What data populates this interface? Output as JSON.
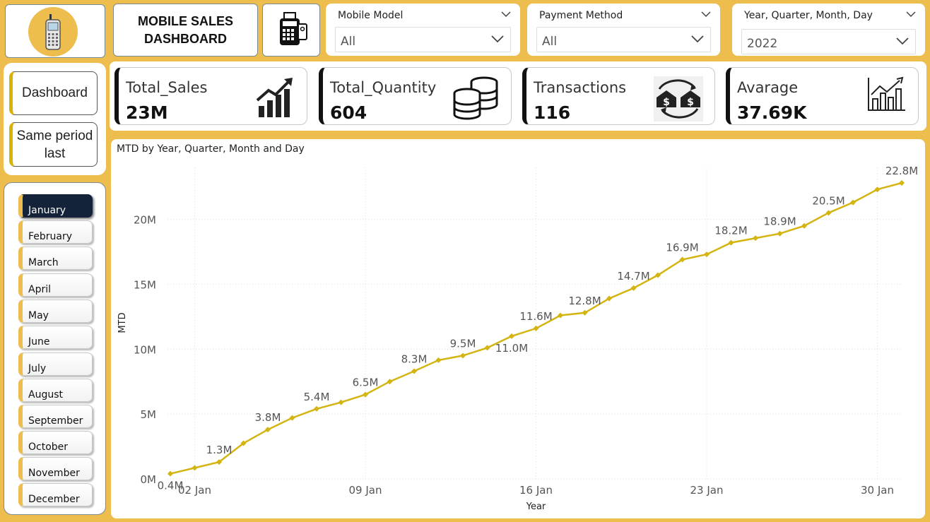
{
  "header": {
    "title_line1": "MOBILE SALES",
    "title_line2": "DASHBOARD",
    "more_options": "..."
  },
  "slicers": [
    {
      "title": "Mobile Model",
      "value": "All"
    },
    {
      "title": "Payment Method",
      "value": "All"
    },
    {
      "title": "Year, Quarter, Month, Day",
      "value": "2022"
    }
  ],
  "nav": {
    "dashboard": "Dashboard",
    "same_period_line1": "Same period",
    "same_period_line2": "last"
  },
  "months": [
    "January",
    "February",
    "March",
    "April",
    "May",
    "June",
    "July",
    "August",
    "September",
    "October",
    "November",
    "December"
  ],
  "active_month": "January",
  "kpis": [
    {
      "label": "Total_Sales",
      "value": "23M",
      "icon": "growth-chart-icon"
    },
    {
      "label": "Total_Quantity",
      "value": "604",
      "icon": "coins-stack-icon"
    },
    {
      "label": "Transactions",
      "value": "116",
      "icon": "money-transfer-icon"
    },
    {
      "label": "Avarage",
      "value": "37.69K",
      "icon": "bar-trend-icon"
    }
  ],
  "colors": {
    "background": "#edbd4e",
    "line": "#d4b410",
    "active_month": "#142339",
    "accent_bar": "#d9b300"
  },
  "chart_data": {
    "type": "line",
    "title": "MTD by Year, Quarter, Month and Day",
    "xlabel": "Year",
    "ylabel": "MTD",
    "x": [
      1,
      2,
      3,
      4,
      5,
      6,
      7,
      8,
      9,
      10,
      11,
      12,
      13,
      14,
      15,
      16,
      17,
      18,
      19,
      20,
      21,
      22,
      23,
      24,
      25,
      26,
      27,
      28,
      29,
      30,
      31
    ],
    "x_tick_labels": [
      {
        "x": 2,
        "label": "02 Jan"
      },
      {
        "x": 9,
        "label": "09 Jan"
      },
      {
        "x": 16,
        "label": "16 Jan"
      },
      {
        "x": 23,
        "label": "23 Jan"
      },
      {
        "x": 30,
        "label": "30 Jan"
      }
    ],
    "series": [
      {
        "name": "MTD",
        "values": [
          0.4,
          0.85,
          1.3,
          2.75,
          3.8,
          4.7,
          5.4,
          5.9,
          6.5,
          7.5,
          8.3,
          9.15,
          9.5,
          10.1,
          11.0,
          11.6,
          12.6,
          12.8,
          13.9,
          14.7,
          15.7,
          16.9,
          17.3,
          18.2,
          18.55,
          18.9,
          19.5,
          20.5,
          21.3,
          22.3,
          22.8
        ]
      }
    ],
    "data_labels": [
      {
        "x": 1,
        "text": "0.4M",
        "pos": "below"
      },
      {
        "x": 3,
        "text": "1.3M",
        "pos": "above"
      },
      {
        "x": 5,
        "text": "3.8M",
        "pos": "above"
      },
      {
        "x": 7,
        "text": "5.4M",
        "pos": "above"
      },
      {
        "x": 9,
        "text": "6.5M",
        "pos": "above"
      },
      {
        "x": 11,
        "text": "8.3M",
        "pos": "above"
      },
      {
        "x": 13,
        "text": "9.5M",
        "pos": "above"
      },
      {
        "x": 15,
        "text": "11.0M",
        "pos": "below"
      },
      {
        "x": 16,
        "text": "11.6M",
        "pos": "above"
      },
      {
        "x": 18,
        "text": "12.8M",
        "pos": "above"
      },
      {
        "x": 20,
        "text": "14.7M",
        "pos": "above"
      },
      {
        "x": 22,
        "text": "16.9M",
        "pos": "above"
      },
      {
        "x": 24,
        "text": "18.2M",
        "pos": "above"
      },
      {
        "x": 26,
        "text": "18.9M",
        "pos": "above"
      },
      {
        "x": 28,
        "text": "20.5M",
        "pos": "above"
      },
      {
        "x": 31,
        "text": "22.8M",
        "pos": "above"
      }
    ],
    "y_ticks": [
      {
        "v": 0,
        "label": "0M"
      },
      {
        "v": 5,
        "label": "5M"
      },
      {
        "v": 10,
        "label": "10M"
      },
      {
        "v": 15,
        "label": "15M"
      },
      {
        "v": 20,
        "label": "20M"
      }
    ],
    "ylim": [
      0,
      24
    ],
    "grid": true
  }
}
